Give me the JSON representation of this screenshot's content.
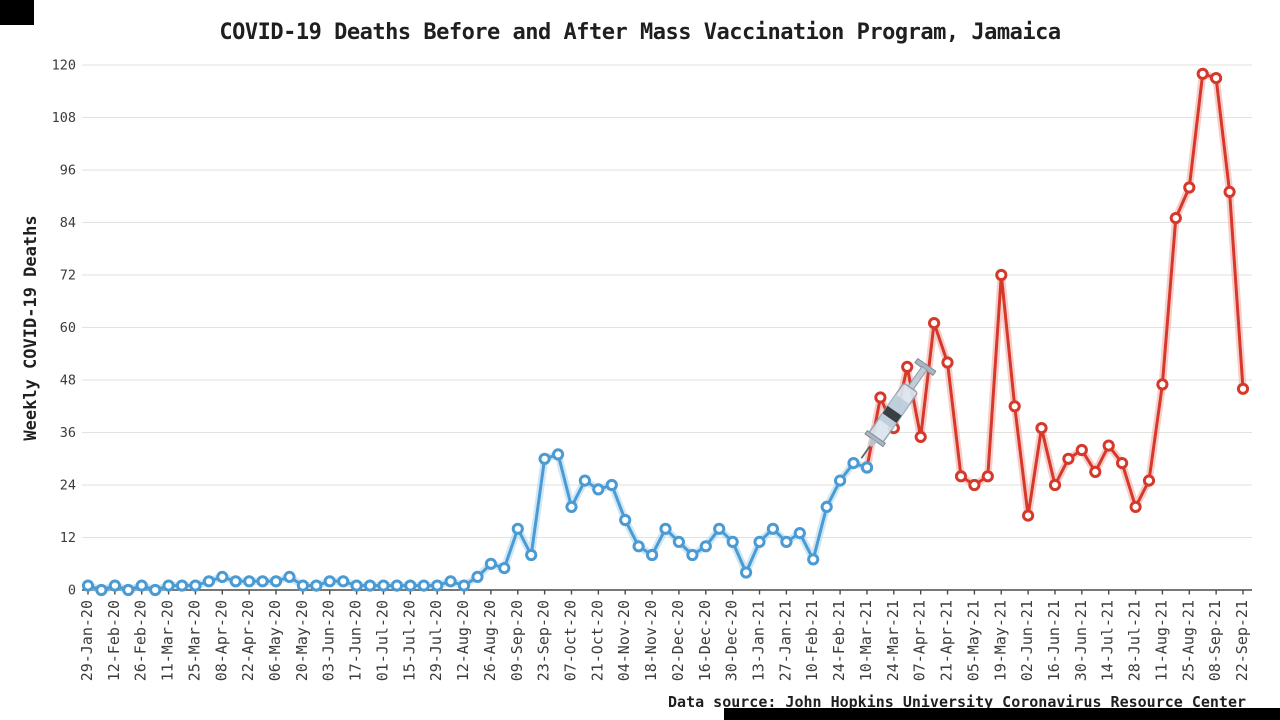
{
  "window": {
    "background": "#ffffff"
  },
  "chart_data": {
    "type": "line",
    "title": "COVID-19 Deaths Before and After Mass Vaccination Program, Jamaica",
    "xlabel": "",
    "ylabel": "Weekly COVID-19 Deaths",
    "source_note": "Data source: John Hopkins University Coronavirus Resource Center",
    "ylim": [
      0,
      120
    ],
    "yticks": [
      0,
      12,
      24,
      36,
      48,
      60,
      72,
      84,
      96,
      108,
      120
    ],
    "grid": true,
    "legend": "none",
    "x_tick_every": 2,
    "tick_color": "#3c3c3c",
    "grid_color": "#e2e2de",
    "axis_color": "#4a4a4a",
    "x": [
      "29-Jan-20",
      "05-Feb-20",
      "12-Feb-20",
      "19-Feb-20",
      "26-Feb-20",
      "04-Mar-20",
      "11-Mar-20",
      "18-Mar-20",
      "25-Mar-20",
      "01-Apr-20",
      "08-Apr-20",
      "15-Apr-20",
      "22-Apr-20",
      "29-Apr-20",
      "06-May-20",
      "13-May-20",
      "20-May-20",
      "27-May-20",
      "03-Jun-20",
      "10-Jun-20",
      "17-Jun-20",
      "24-Jun-20",
      "01-Jul-20",
      "08-Jul-20",
      "15-Jul-20",
      "22-Jul-20",
      "29-Jul-20",
      "05-Aug-20",
      "12-Aug-20",
      "19-Aug-20",
      "26-Aug-20",
      "02-Sep-20",
      "09-Sep-20",
      "16-Sep-20",
      "23-Sep-20",
      "30-Sep-20",
      "07-Oct-20",
      "14-Oct-20",
      "21-Oct-20",
      "28-Oct-20",
      "04-Nov-20",
      "11-Nov-20",
      "18-Nov-20",
      "25-Nov-20",
      "02-Dec-20",
      "09-Dec-20",
      "16-Dec-20",
      "23-Dec-20",
      "30-Dec-20",
      "06-Jan-21",
      "13-Jan-21",
      "20-Jan-21",
      "27-Jan-21",
      "03-Feb-21",
      "10-Feb-21",
      "17-Feb-21",
      "24-Feb-21",
      "03-Mar-21",
      "10-Mar-21",
      "17-Mar-21",
      "24-Mar-21",
      "31-Mar-21",
      "07-Apr-21",
      "14-Apr-21",
      "21-Apr-21",
      "28-Apr-21",
      "05-May-21",
      "12-May-21",
      "19-May-21",
      "26-May-21",
      "02-Jun-21",
      "09-Jun-21",
      "16-Jun-21",
      "23-Jun-21",
      "30-Jun-21",
      "07-Jul-21",
      "14-Jul-21",
      "21-Jul-21",
      "28-Jul-21",
      "04-Aug-21",
      "11-Aug-21",
      "18-Aug-21",
      "25-Aug-21",
      "01-Sep-21",
      "08-Sep-21",
      "15-Sep-21",
      "22-Sep-21"
    ],
    "series": [
      {
        "name": "before-vaccination",
        "color": "#4a9ad4",
        "glow": "#a9d3ef",
        "start_index": 0,
        "values": [
          1,
          0,
          1,
          0,
          1,
          0,
          1,
          1,
          1,
          2,
          3,
          2,
          2,
          2,
          2,
          3,
          1,
          1,
          2,
          2,
          1,
          1,
          1,
          1,
          1,
          1,
          1,
          2,
          1,
          3,
          6,
          5,
          14,
          8,
          30,
          31,
          19,
          25,
          23,
          24,
          16,
          10,
          8,
          14,
          11,
          8,
          10,
          14,
          11,
          4,
          11,
          14,
          11,
          13,
          7,
          19,
          25,
          29,
          28
        ]
      },
      {
        "name": "after-vaccination",
        "color": "#d6382b",
        "glow": "#f1a89f",
        "start_index": 58,
        "values": [
          28,
          44,
          37,
          51,
          35,
          61,
          52,
          26,
          24,
          26,
          72,
          42,
          17,
          37,
          24,
          30,
          32,
          27,
          33,
          29,
          19,
          25,
          47,
          85,
          92,
          118,
          117,
          91,
          46
        ]
      }
    ],
    "annotation": {
      "icon": "syringe-icon",
      "week_index": 58
    }
  }
}
